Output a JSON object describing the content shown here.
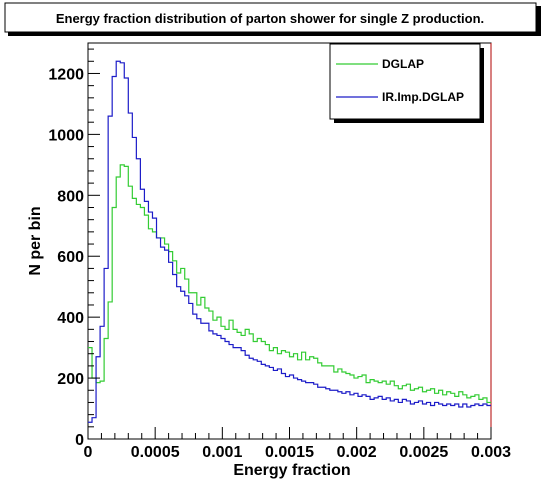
{
  "chart_data": {
    "type": "line",
    "title": "Energy fraction distribution of parton shower for single Z production.",
    "xlabel": "Energy fraction",
    "ylabel": "N per bin",
    "xlim": [
      0,
      0.003
    ],
    "ylim": [
      0,
      1300
    ],
    "xticks": [
      0,
      0.0005,
      0.001,
      0.0015,
      0.002,
      0.0025,
      0.003
    ],
    "xtick_labels": [
      "0",
      "0.0005",
      "0.001",
      "0.0015",
      "0.002",
      "0.0025",
      "0.003"
    ],
    "yticks": [
      0,
      200,
      400,
      600,
      800,
      1000,
      1200
    ],
    "ytick_labels": [
      "0",
      "200",
      "400",
      "600",
      "800",
      "1000",
      "1200"
    ],
    "legend_position": "top-right",
    "grid": false,
    "bin_width": 3e-05,
    "series": [
      {
        "name": "DGLAP",
        "color": "#33cc33",
        "style": "histogram-step",
        "values": [
          300,
          200,
          185,
          190,
          330,
          450,
          760,
          860,
          900,
          895,
          830,
          790,
          770,
          760,
          735,
          690,
          680,
          660,
          660,
          640,
          615,
          585,
          545,
          560,
          525,
          480,
          480,
          440,
          465,
          430,
          420,
          390,
          400,
          370,
          360,
          390,
          360,
          350,
          340,
          360,
          345,
          320,
          330,
          320,
          310,
          290,
          300,
          280,
          290,
          285,
          270,
          280,
          260,
          285,
          260,
          270,
          265,
          250,
          240,
          240,
          240,
          220,
          230,
          220,
          215,
          210,
          200,
          205,
          210,
          185,
          195,
          190,
          185,
          190,
          180,
          190,
          175,
          165,
          175,
          180,
          160,
          165,
          170,
          155,
          160,
          165,
          150,
          160,
          145,
          155,
          150,
          140,
          155,
          145,
          135,
          140,
          145,
          130,
          135,
          120
        ]
      },
      {
        "name": "IR.Imp.DGLAP",
        "color": "#1c1cc8",
        "style": "histogram-step",
        "values": [
          55,
          70,
          270,
          370,
          560,
          1060,
          1190,
          1240,
          1235,
          1185,
          1070,
          990,
          920,
          820,
          780,
          745,
          725,
          660,
          630,
          620,
          580,
          540,
          500,
          485,
          470,
          445,
          410,
          395,
          380,
          380,
          355,
          345,
          340,
          330,
          320,
          310,
          300,
          300,
          290,
          275,
          265,
          260,
          255,
          245,
          240,
          235,
          225,
          230,
          215,
          205,
          210,
          200,
          195,
          190,
          185,
          185,
          180,
          170,
          170,
          165,
          160,
          160,
          155,
          150,
          155,
          145,
          150,
          140,
          145,
          140,
          130,
          135,
          140,
          130,
          135,
          125,
          130,
          120,
          130,
          125,
          115,
          120,
          125,
          115,
          120,
          110,
          120,
          115,
          110,
          115,
          110,
          115,
          105,
          115,
          105,
          110,
          115,
          110,
          115,
          110
        ]
      }
    ]
  }
}
